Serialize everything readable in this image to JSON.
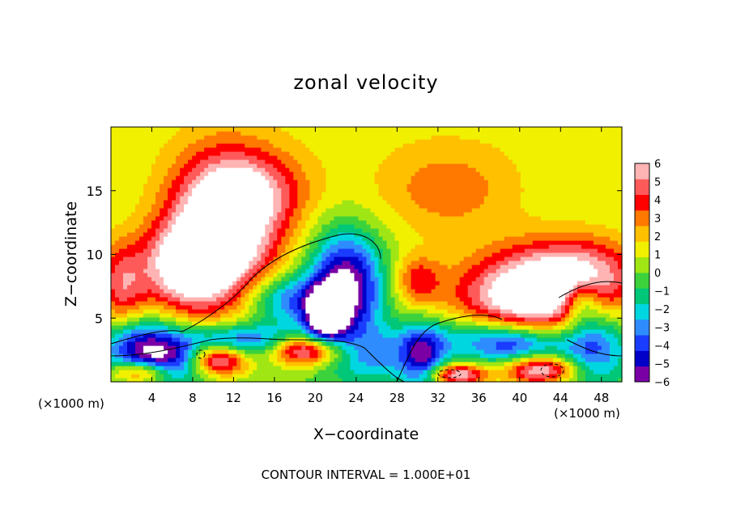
{
  "chart_data": {
    "type": "heatmap",
    "title": "zonal velocity",
    "xlabel": "X−coordinate",
    "ylabel": "Z−coordinate",
    "x_units_left": "(×1000 m)",
    "x_units_right": "(×1000 m)",
    "footer": "CONTOUR INTERVAL = 1.000E+01",
    "xlim": [
      0,
      50
    ],
    "ylim": [
      0,
      20
    ],
    "x_ticks": [
      4,
      8,
      12,
      16,
      20,
      24,
      28,
      32,
      36,
      40,
      44,
      48
    ],
    "y_ticks": [
      5,
      10,
      15
    ],
    "colorbar": {
      "ticks": [
        "6",
        "5",
        "4",
        "3",
        "2",
        "1",
        "0",
        "−1",
        "−2",
        "−3",
        "−4",
        "−5",
        "−6"
      ],
      "vmin": -6,
      "vmax": 6,
      "colors": [
        "#7a00a6",
        "#0000c8",
        "#1a3cff",
        "#2f8cff",
        "#00d6e0",
        "#00c878",
        "#3cd23c",
        "#a0e614",
        "#f0f000",
        "#ffc000",
        "#ff7800",
        "#ff0000",
        "#ff5a5a",
        "#ffb4b4"
      ]
    },
    "field_features": [
      {
        "name": "strong positive core (off-scale white)",
        "x": 11,
        "z": 11.5,
        "value": 7
      },
      {
        "name": "positive core",
        "x": 33,
        "z": 15,
        "value": 3.5
      },
      {
        "name": "strong positive core (off-scale white)",
        "x": 41,
        "z": 6.5,
        "value": 7
      },
      {
        "name": "negative core",
        "x": 23,
        "z": 7,
        "value": -5
      },
      {
        "name": "negative core",
        "x": 21,
        "z": 5.5,
        "value": -5.5
      },
      {
        "name": "negative band",
        "x": 12,
        "z": 4,
        "value": -4
      },
      {
        "name": "negative band",
        "x": 3,
        "z": 3,
        "value": -4
      },
      {
        "name": "negative band",
        "x": 47,
        "z": 3,
        "value": -4.5
      }
    ]
  }
}
